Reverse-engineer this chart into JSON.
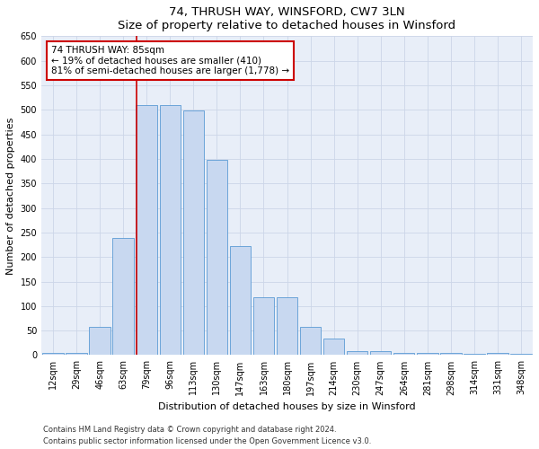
{
  "title": "74, THRUSH WAY, WINSFORD, CW7 3LN",
  "subtitle": "Size of property relative to detached houses in Winsford",
  "xlabel": "Distribution of detached houses by size in Winsford",
  "ylabel": "Number of detached properties",
  "categories": [
    "12sqm",
    "29sqm",
    "46sqm",
    "63sqm",
    "79sqm",
    "96sqm",
    "113sqm",
    "130sqm",
    "147sqm",
    "163sqm",
    "180sqm",
    "197sqm",
    "214sqm",
    "230sqm",
    "247sqm",
    "264sqm",
    "281sqm",
    "298sqm",
    "314sqm",
    "331sqm",
    "348sqm"
  ],
  "values": [
    4,
    5,
    58,
    238,
    510,
    510,
    498,
    398,
    222,
    118,
    118,
    58,
    33,
    8,
    8,
    4,
    4,
    4,
    2,
    4,
    2
  ],
  "bar_color": "#c8d8f0",
  "bar_edge_color": "#5b9bd5",
  "property_line_color": "#cc0000",
  "property_line_index": 4,
  "annotation_text": "74 THRUSH WAY: 85sqm\n← 19% of detached houses are smaller (410)\n81% of semi-detached houses are larger (1,778) →",
  "annotation_box_color": "#ffffff",
  "annotation_box_edge_color": "#cc0000",
  "ylim": [
    0,
    650
  ],
  "yticks": [
    0,
    50,
    100,
    150,
    200,
    250,
    300,
    350,
    400,
    450,
    500,
    550,
    600,
    650
  ],
  "grid_color": "#ccd6e8",
  "background_color": "#e8eef8",
  "footnote1": "Contains HM Land Registry data © Crown copyright and database right 2024.",
  "footnote2": "Contains public sector information licensed under the Open Government Licence v3.0.",
  "title_fontsize": 9.5,
  "subtitle_fontsize": 8.5,
  "axis_label_fontsize": 8,
  "tick_fontsize": 7,
  "annotation_fontsize": 7.5,
  "footnote_fontsize": 6
}
